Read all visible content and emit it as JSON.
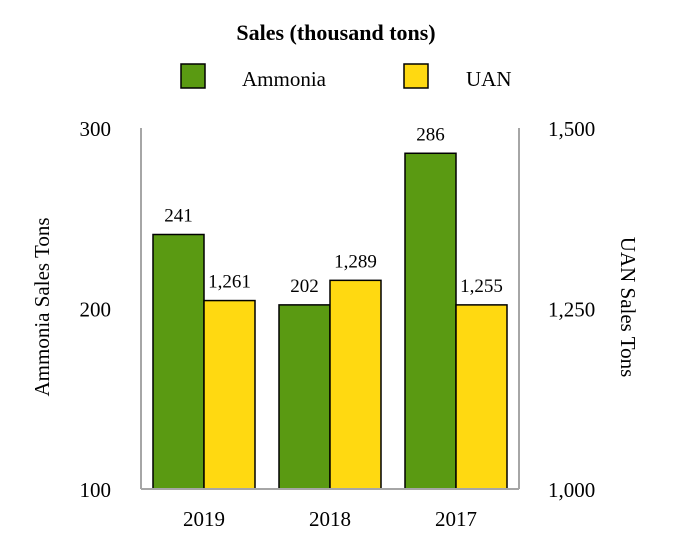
{
  "chart_data": {
    "type": "bar",
    "title": "Sales (thousand tons)",
    "categories": [
      "2019",
      "2018",
      "2017"
    ],
    "series": [
      {
        "name": "Ammonia",
        "axis": "left",
        "color": "#5a9a12",
        "values": [
          241,
          202,
          286
        ],
        "labels": [
          "241",
          "202",
          "286"
        ]
      },
      {
        "name": "UAN",
        "axis": "right",
        "color": "#ffd911",
        "values": [
          1261,
          1289,
          1255
        ],
        "labels": [
          "1,261",
          "1,289",
          "1,255"
        ]
      }
    ],
    "y_left": {
      "label": "Ammonia Sales Tons",
      "range": [
        100,
        300
      ],
      "ticks": [
        100,
        200,
        300
      ],
      "tick_labels": [
        "100",
        "200",
        "300"
      ]
    },
    "y_right": {
      "label": "UAN Sales Tons",
      "range": [
        1000,
        1500
      ],
      "ticks": [
        1000,
        1250,
        1500
      ],
      "tick_labels": [
        "1,000",
        "1,250",
        "1,500"
      ]
    },
    "grid": false,
    "legend_position": "top"
  }
}
